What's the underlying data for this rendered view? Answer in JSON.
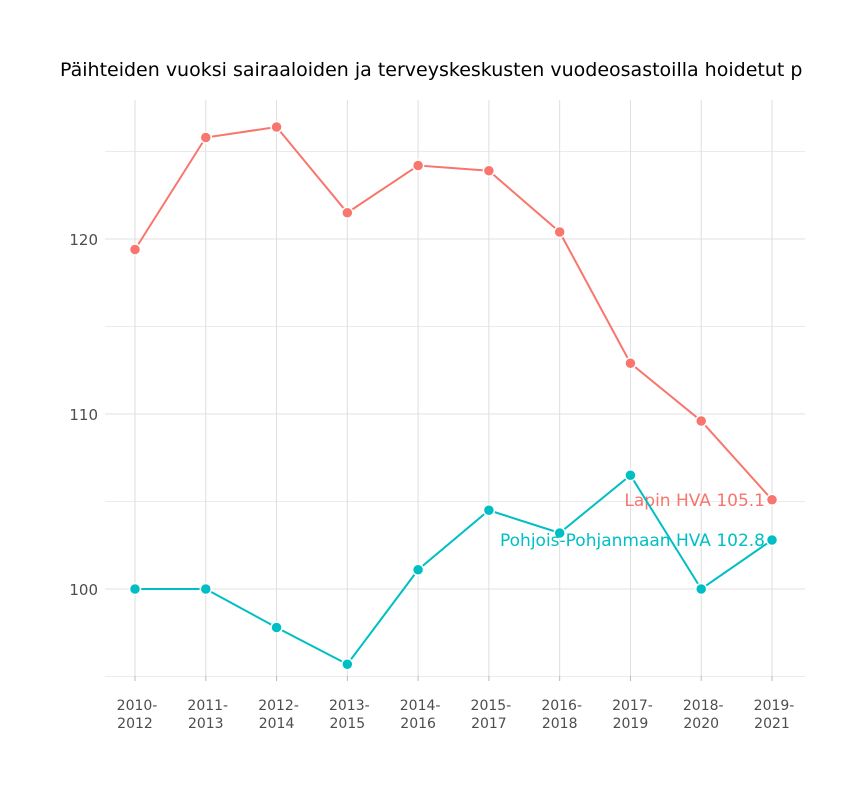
{
  "chart_data": {
    "type": "line",
    "title": "Päihteiden vuoksi sairaaloiden ja terveyskeskusten vuodeosastoilla hoidetut p",
    "xlabel": "",
    "ylabel": "",
    "categories": [
      [
        "2010-",
        "2012"
      ],
      [
        "2011-",
        "2013"
      ],
      [
        "2012-",
        "2014"
      ],
      [
        "2013-",
        "2015"
      ],
      [
        "2014-",
        "2016"
      ],
      [
        "2015-",
        "2017"
      ],
      [
        "2016-",
        "2018"
      ],
      [
        "2017-",
        "2019"
      ],
      [
        "2018-",
        "2020"
      ],
      [
        "2019-",
        "2021"
      ]
    ],
    "yticks": [
      100,
      110,
      120
    ],
    "ylim": [
      95,
      128
    ],
    "grid": true,
    "series": [
      {
        "name": "Lapin HVA",
        "end_label": "Lapin HVA 105.1",
        "color": "#F8766D",
        "values": [
          119.4,
          125.8,
          126.4,
          121.5,
          124.2,
          123.9,
          120.4,
          112.9,
          109.6,
          105.1
        ]
      },
      {
        "name": "Pohjois-Pohjanmaan HVA",
        "end_label": "Pohjois-Pohjanmaan HVA 102.8",
        "color": "#00BFC4",
        "values": [
          100.0,
          100.0,
          97.8,
          95.7,
          101.1,
          104.5,
          103.2,
          106.5,
          100.0,
          102.8
        ]
      }
    ]
  }
}
